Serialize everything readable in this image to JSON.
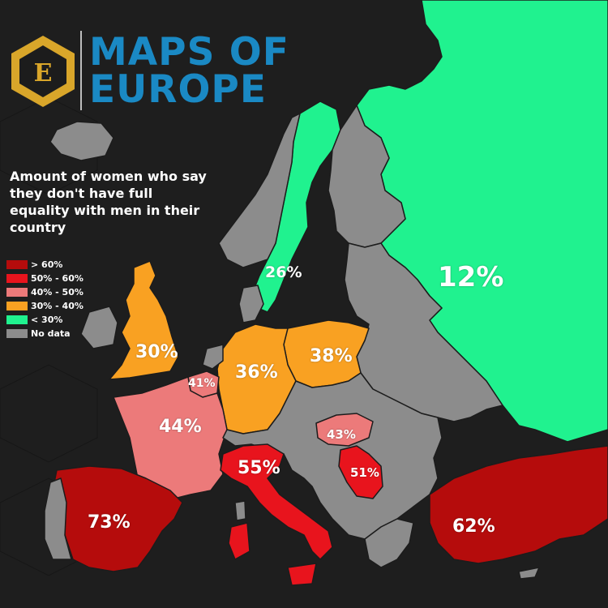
{
  "brand": {
    "line1": "MAPS OF",
    "line2": "EUROPE",
    "badge_letter": "E",
    "brand_color": "#1a89c4",
    "badge_color": "#d9a62a"
  },
  "title": "Amount of women who say they don't have full equality with men in their country",
  "legend": [
    {
      "label": "> 60%",
      "color": "#b50c0c"
    },
    {
      "label": "50% - 60%",
      "color": "#e8141d"
    },
    {
      "label": "40% - 50%",
      "color": "#ec7a7a"
    },
    {
      "label": "30% - 40%",
      "color": "#f9a122"
    },
    {
      "label": "< 30%",
      "color": "#20f28f"
    },
    {
      "label": "No data",
      "color": "#8c8c8c"
    }
  ],
  "regions": {
    "russia": {
      "value": "12%",
      "color": "#20f28f"
    },
    "sweden": {
      "value": "26%",
      "color": "#20f28f"
    },
    "united_kingdom": {
      "value": "30%",
      "color": "#f9a122"
    },
    "germany": {
      "value": "36%",
      "color": "#f9a122"
    },
    "poland": {
      "value": "38%",
      "color": "#f9a122"
    },
    "belgium": {
      "value": "41%",
      "color": "#ec7a7a"
    },
    "france": {
      "value": "44%",
      "color": "#ec7a7a"
    },
    "hungary": {
      "value": "43%",
      "color": "#ec7a7a"
    },
    "italy": {
      "value": "55%",
      "color": "#e8141d"
    },
    "serbia": {
      "value": "51%",
      "color": "#e8141d"
    },
    "spain": {
      "value": "73%",
      "color": "#b50c0c"
    },
    "turkey": {
      "value": "62%",
      "color": "#b50c0c"
    }
  },
  "no_data_color": "#8c8c8c"
}
